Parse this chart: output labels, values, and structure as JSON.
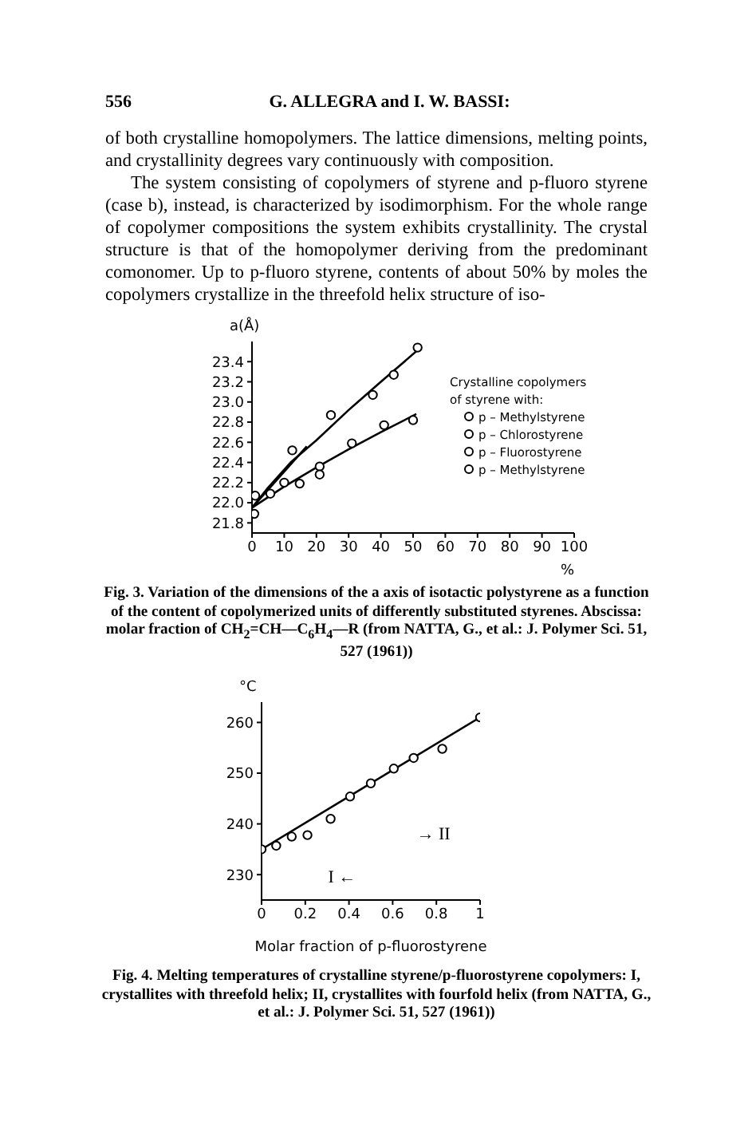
{
  "chart_data": [
    {
      "type": "scatter",
      "xlabel": "%",
      "ylabel": "a(Å)",
      "legend_title": "Crystalline copolymers of styrene with:",
      "legend": "right",
      "marker": "circle",
      "xlim": [
        0,
        100
      ],
      "xticks": [
        0,
        10,
        20,
        30,
        40,
        50,
        60,
        70,
        80,
        90,
        100
      ],
      "ylim": [
        21.7,
        23.6
      ],
      "yticks": [
        21.8,
        {
          "value": 22,
          "label": "22.0"
        },
        22.2,
        22.4,
        22.6,
        22.8,
        {
          "value": 23,
          "label": "23.0"
        },
        23.2,
        23.4
      ],
      "series": [
        {
          "name": "p – Methylstyrene",
          "color": "#000000",
          "x": [
            1,
            12.5,
            24.5,
            37.5,
            44,
            51.4
          ],
          "values": [
            22.07,
            22.52,
            22.87,
            23.07,
            23.27,
            23.54
          ]
        },
        {
          "name": "p – Chlorostyrene",
          "color": "#000000",
          "x": [
            21,
            31,
            41,
            50
          ],
          "values": [
            22.36,
            22.59,
            22.77,
            22.82
          ]
        },
        {
          "name": "p – Fluorostyrene",
          "color": "#000000",
          "x": [
            5.7,
            10,
            14.8
          ],
          "values": [
            22.09,
            22.2,
            22.19
          ]
        },
        {
          "name": "p – Methylstyrene",
          "color": "#000000",
          "x": [
            0.7,
            21
          ],
          "values": [
            21.89,
            22.28
          ]
        },
        {
          "type": "line",
          "marker": "none",
          "color": "#000000",
          "x": [
            0,
            5,
            12,
            20,
            30,
            40,
            52
          ],
          "values": [
            21.95,
            22.15,
            22.4,
            22.62,
            22.92,
            23.2,
            23.53
          ]
        },
        {
          "type": "line",
          "marker": "none",
          "color": "#000000",
          "x": [
            0,
            10,
            20,
            30,
            40,
            51
          ],
          "values": [
            21.95,
            22.16,
            22.35,
            22.53,
            22.7,
            22.88
          ]
        },
        {
          "type": "line",
          "marker": "none",
          "color": "#000000",
          "x": [
            0,
            17
          ],
          "values": [
            21.95,
            22.56
          ]
        }
      ],
      "annotations": [
        "556",
        "G. ALLEGRA and I. W. BASSI:",
        "of both crystalline homopolymers. The lattice dimensions, melting points, and crystallinity degrees vary continuously with composition.",
        "The system consisting of copolymers of styrene and p-fluoro styrene (case b), instead, is characterized by isodimorphism. For the whole range of copolymer compositions the system exhibits crystallinity. The crystal structure is that of the homopolymer deriving from the predominant comonomer. Up to p-fluoro styrene, contents of about 50% by moles the copolymers crystallize in the threefold helix structure of iso-",
        "Fig. 3. Variation of the dimensions of the a axis of isotactic polystyrene as a function of the content of copolymerized units of differently substituted styrenes. Abscissa: molar fraction of CH$_{2}$=CH—C$_{6}$H$_{4}$—R (from NATTA, G., et al.: J. Polymer Sci. 51, 527 (1961))"
      ]
    },
    {
      "type": "scatter",
      "xlabel": "Molar fraction of p-fluorostyrene",
      "ylabel": "°C",
      "marker": "circle",
      "xlim": [
        0,
        1
      ],
      "xticks": [
        0,
        0.2,
        0.4,
        0.6,
        0.8,
        1
      ],
      "ylim": [
        225,
        264
      ],
      "yticks": [
        230,
        240,
        250,
        260
      ],
      "series": [
        {
          "color": "#000000",
          "x": [
            0,
            0.067,
            0.138,
            0.21,
            0.316,
            0.405,
            0.5,
            0.605,
            0.696,
            0.827,
            1
          ],
          "values": [
            235,
            235.7,
            237.5,
            237.8,
            241,
            245.4,
            248,
            250.9,
            253,
            254.8,
            261
          ]
        },
        {
          "type": "line",
          "marker": "none",
          "color": "#000000",
          "x": [
            0,
            1
          ],
          "values": [
            235,
            261
          ]
        }
      ],
      "annotations": [
        "I ←",
        "→ II",
        "Fig. 4. Melting temperatures of crystalline styrene/p-fluorostyrene copolymers: I, crystallites with threefold helix; II, crystallites with fourfold helix (from NATTA, G., et al.: J. Polymer Sci. 51, 527 (1961))"
      ]
    }
  ]
}
